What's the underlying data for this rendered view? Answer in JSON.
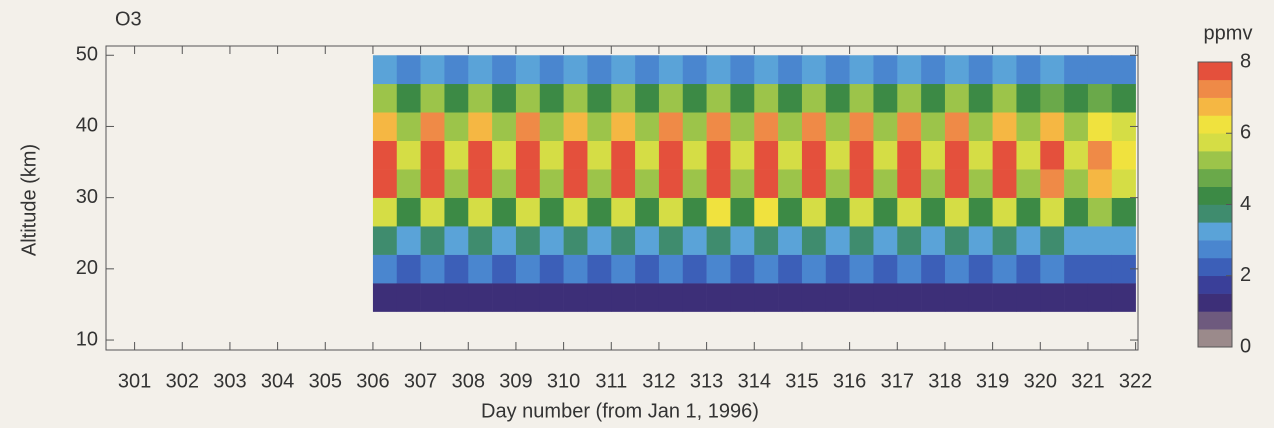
{
  "chart_data": {
    "type": "heatmap",
    "title": "O3",
    "xlabel": "Day number (from Jan 1, 1996)",
    "ylabel": "Altitude (km)",
    "xlim": [
      300.4,
      322.05
    ],
    "ylim": [
      8.6,
      51.3
    ],
    "xticks": [
      301,
      302,
      303,
      304,
      305,
      306,
      307,
      308,
      309,
      310,
      311,
      312,
      313,
      314,
      315,
      316,
      317,
      318,
      319,
      320,
      321,
      322
    ],
    "yticks": [
      10,
      20,
      30,
      40,
      50
    ],
    "x": [
      306.25,
      306.75,
      307.25,
      307.75,
      308.25,
      308.75,
      309.25,
      309.75,
      310.25,
      310.75,
      311.25,
      311.75,
      312.25,
      312.75,
      313.25,
      313.75,
      314.25,
      314.75,
      315.25,
      315.75,
      316.25,
      316.75,
      317.25,
      317.75,
      318.25,
      318.75,
      319.25,
      319.75,
      320.25,
      320.75,
      321.25,
      321.75
    ],
    "y": [
      16,
      20,
      24,
      28,
      32,
      36,
      40,
      44,
      48
    ],
    "z": [
      [
        1.2,
        2.6,
        3.6,
        5.6,
        7.6,
        7.8,
        6.8,
        5.0,
        3.0
      ],
      [
        1.0,
        2.2,
        3.0,
        4.2,
        5.2,
        5.6,
        5.0,
        4.0,
        2.8
      ],
      [
        1.2,
        2.6,
        3.6,
        5.8,
        7.7,
        8.0,
        7.0,
        5.0,
        3.0
      ],
      [
        1.0,
        2.2,
        3.0,
        4.2,
        5.2,
        5.6,
        5.0,
        4.0,
        2.8
      ],
      [
        1.1,
        2.6,
        3.6,
        5.6,
        7.5,
        7.7,
        6.8,
        5.0,
        3.0
      ],
      [
        1.0,
        2.2,
        3.0,
        4.2,
        5.2,
        5.6,
        5.0,
        4.0,
        2.8
      ],
      [
        1.2,
        2.6,
        3.7,
        5.8,
        7.7,
        8.0,
        7.0,
        5.2,
        3.0
      ],
      [
        1.0,
        2.2,
        3.0,
        4.2,
        5.2,
        5.6,
        5.0,
        4.0,
        2.8
      ],
      [
        1.1,
        2.6,
        3.6,
        5.6,
        7.6,
        7.9,
        6.9,
        5.0,
        3.0
      ],
      [
        1.0,
        2.2,
        3.0,
        4.2,
        5.2,
        5.6,
        5.0,
        4.0,
        2.8
      ],
      [
        1.2,
        2.6,
        3.6,
        5.6,
        7.5,
        7.8,
        6.8,
        5.0,
        3.0
      ],
      [
        1.0,
        2.2,
        3.0,
        4.2,
        5.2,
        5.6,
        5.0,
        4.0,
        2.8
      ],
      [
        1.2,
        2.7,
        3.8,
        5.9,
        7.8,
        8.0,
        7.2,
        5.2,
        3.0
      ],
      [
        1.0,
        2.2,
        3.0,
        4.3,
        5.4,
        5.8,
        5.2,
        4.0,
        2.8
      ],
      [
        1.2,
        2.8,
        3.9,
        6.0,
        7.9,
        8.0,
        7.4,
        5.4,
        3.2
      ],
      [
        1.0,
        2.2,
        3.0,
        4.2,
        5.2,
        5.6,
        5.0,
        4.0,
        2.8
      ],
      [
        1.2,
        2.8,
        3.9,
        6.0,
        7.9,
        8.0,
        7.4,
        5.4,
        3.2
      ],
      [
        1.0,
        2.2,
        3.0,
        4.2,
        5.2,
        5.6,
        5.0,
        4.0,
        2.8
      ],
      [
        1.2,
        2.7,
        3.8,
        5.9,
        7.8,
        8.0,
        7.2,
        5.2,
        3.0
      ],
      [
        1.0,
        2.2,
        3.0,
        4.2,
        5.2,
        5.6,
        5.0,
        4.0,
        2.8
      ],
      [
        1.2,
        2.6,
        3.7,
        5.8,
        7.7,
        8.0,
        7.0,
        5.0,
        3.0
      ],
      [
        1.0,
        2.2,
        3.0,
        4.2,
        5.2,
        5.6,
        5.0,
        4.0,
        2.8
      ],
      [
        1.2,
        2.7,
        3.8,
        5.9,
        7.8,
        8.0,
        7.2,
        5.2,
        3.0
      ],
      [
        1.0,
        2.2,
        3.0,
        4.2,
        5.2,
        5.6,
        5.0,
        4.0,
        2.8
      ],
      [
        1.2,
        2.6,
        3.7,
        5.8,
        7.7,
        8.0,
        7.0,
        5.0,
        3.0
      ],
      [
        1.0,
        2.2,
        3.0,
        4.2,
        5.2,
        5.6,
        5.0,
        4.0,
        2.8
      ],
      [
        1.1,
        2.6,
        3.6,
        5.6,
        7.6,
        7.9,
        6.9,
        5.0,
        3.0
      ],
      [
        1.0,
        2.2,
        3.0,
        4.2,
        5.2,
        5.6,
        5.0,
        4.0,
        2.8
      ],
      [
        1.1,
        2.6,
        3.6,
        5.6,
        7.4,
        7.6,
        6.6,
        4.8,
        3.0
      ],
      [
        1.0,
        2.2,
        3.0,
        4.2,
        5.2,
        5.6,
        5.0,
        4.0,
        2.8
      ],
      [
        1.0,
        2.4,
        3.4,
        5.2,
        6.6,
        7.0,
        6.2,
        4.6,
        2.9
      ],
      [
        1.0,
        2.2,
        3.0,
        4.4,
        5.8,
        6.2,
        5.6,
        4.2,
        2.8
      ]
    ],
    "zlim": [
      0,
      8
    ],
    "colorscale": [
      "#9b8a8b",
      "#6e5a7e",
      "#3d2f78",
      "#3a3f99",
      "#3c5fb8",
      "#4a86cf",
      "#5aa3d8",
      "#3f8c6e",
      "#3c8a45",
      "#6aa94a",
      "#9cc44a",
      "#d5dd45",
      "#f0e23e",
      "#f5b743",
      "#ef8a47",
      "#e4503c"
    ],
    "colorbar": {
      "label": "ppmv",
      "ticks": [
        0,
        2,
        4,
        6,
        8
      ]
    }
  }
}
